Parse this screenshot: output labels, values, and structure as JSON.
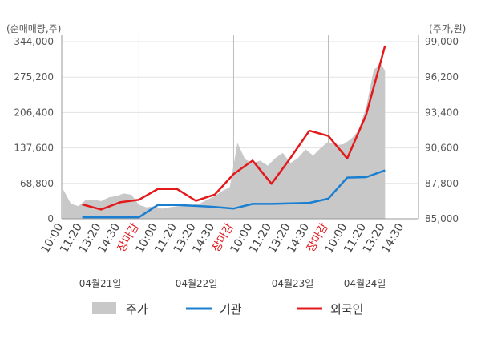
{
  "chart_data": {
    "type": "line",
    "left_axis_title": "(순매매량,주)",
    "right_axis_title": "(주가,원)",
    "left_ticks": [
      "0",
      "68,800",
      "137,600",
      "206,400",
      "275,200",
      "344,000"
    ],
    "left_ylim": [
      0,
      344000
    ],
    "right_ticks": [
      "85,000",
      "87,800",
      "90,600",
      "93,400",
      "96,200",
      "99,000"
    ],
    "right_ylim": [
      85000,
      99000
    ],
    "x_labels": [
      "10:00",
      "11:20",
      "13:20",
      "14:30",
      "장마감",
      "10:00",
      "11:20",
      "13:20",
      "14:30",
      "장마감",
      "10:00",
      "11:20",
      "13:20",
      "14:30",
      "장마감",
      "10:00",
      "11:20",
      "13:20",
      "14:30"
    ],
    "x_label_colors": [
      "#444444",
      "#444444",
      "#444444",
      "#444444",
      "#e31a1c",
      "#444444",
      "#444444",
      "#444444",
      "#444444",
      "#e31a1c",
      "#444444",
      "#444444",
      "#444444",
      "#444444",
      "#e31a1c",
      "#444444",
      "#444444",
      "#444444",
      "#444444"
    ],
    "dates": [
      "04월21일",
      "04월22일",
      "04월23일",
      "04월24일"
    ],
    "legend": [
      {
        "label": "주가",
        "color": "#c8c8c8",
        "kind": "area"
      },
      {
        "label": "기관",
        "color": "#1a7fd1",
        "kind": "line"
      },
      {
        "label": "외국인",
        "color": "#e31a1c",
        "kind": "line"
      }
    ],
    "grid": true,
    "series": [
      {
        "name": "외국인",
        "axis": "left",
        "color": "#e31a1c",
        "x": [
          1,
          2,
          3,
          4,
          5,
          6,
          7,
          8,
          9,
          10,
          11,
          12,
          13,
          14,
          15,
          16,
          17
        ],
        "values": [
          28000,
          18000,
          32000,
          37000,
          58000,
          58000,
          35000,
          47000,
          87000,
          113000,
          68000,
          118000,
          171000,
          161000,
          117000,
          202000,
          336000
        ]
      },
      {
        "name": "기관",
        "axis": "left",
        "color": "#1a7fd1",
        "x": [
          1,
          2,
          3,
          4,
          5,
          6,
          7,
          8,
          9,
          10,
          11,
          12,
          13,
          14,
          15,
          16,
          17
        ],
        "values": [
          3000,
          3000,
          3000,
          3000,
          27000,
          27000,
          25000,
          23000,
          20000,
          29000,
          29000,
          30000,
          31000,
          39000,
          80000,
          81000,
          94000
        ]
      },
      {
        "name": "주가",
        "axis": "right",
        "color": "#c8c8c8",
        "x": [
          0.0,
          0.4,
          0.8,
          1.2,
          1.6,
          2.0,
          2.4,
          2.8,
          3.2,
          3.6,
          4.0,
          4.4,
          4.8,
          5.2,
          5.6,
          6.0,
          6.4,
          6.8,
          7.2,
          7.6,
          8.0,
          8.4,
          8.8,
          9.2,
          9.6,
          10.0,
          10.4,
          10.8,
          11.2,
          11.6,
          12.0,
          12.4,
          12.8,
          13.2,
          13.6,
          14.0,
          14.4,
          14.8,
          15.2,
          15.6,
          16.0,
          16.4,
          16.8,
          17.0
        ],
        "values": [
          87300,
          86200,
          86000,
          86500,
          86500,
          86400,
          86700,
          86800,
          87000,
          86900,
          86100,
          85900,
          86000,
          85800,
          85900,
          86000,
          86000,
          86100,
          86200,
          86500,
          86800,
          87200,
          87500,
          91000,
          89700,
          89400,
          89600,
          89200,
          89800,
          90200,
          89400,
          89800,
          90500,
          90000,
          90600,
          91100,
          90800,
          90900,
          91300,
          92000,
          93800,
          96800,
          97200,
          96700
        ]
      }
    ]
  }
}
